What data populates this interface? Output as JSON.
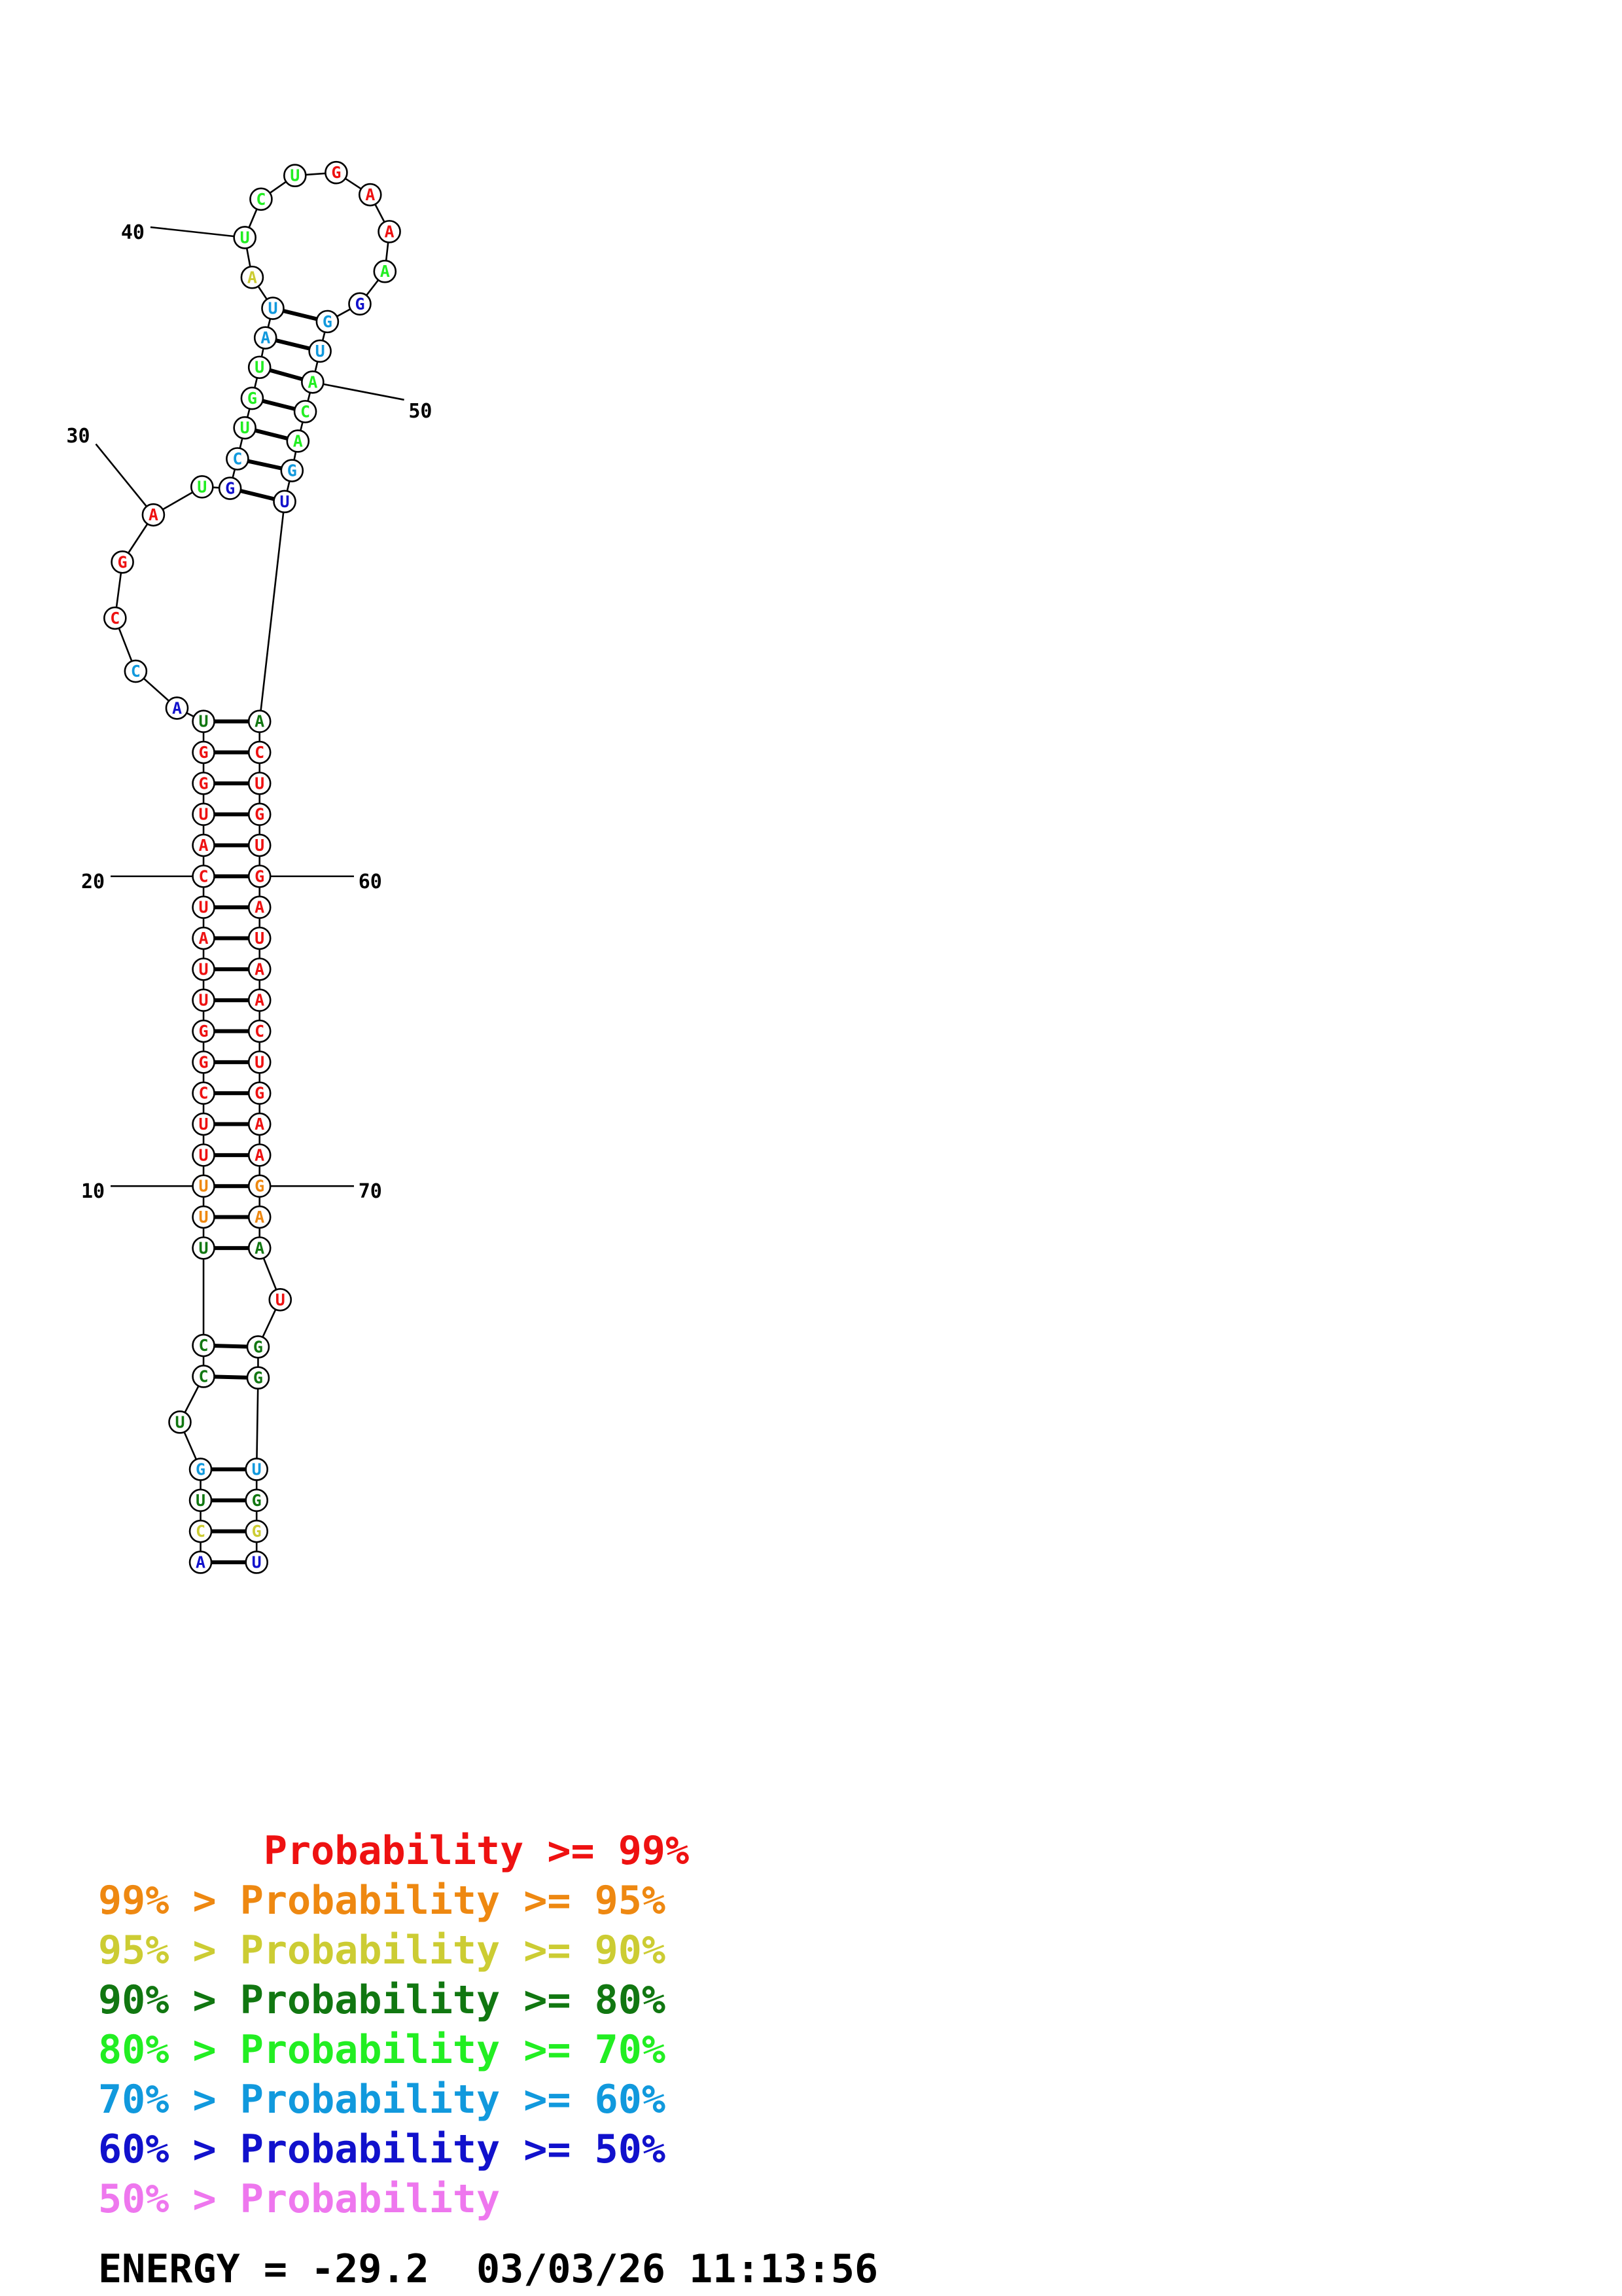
{
  "colors": {
    "p99": "#ee1111",
    "p95": "#ee8811",
    "p90": "#cccc33",
    "p80": "#117711",
    "p70": "#22ee22",
    "p60": "#1199dd",
    "p50": "#1111cc",
    "plow": "#ee77ee"
  },
  "structure": {
    "bases": [
      {
        "n": 1,
        "b": "A",
        "c": "p50"
      },
      {
        "n": 2,
        "b": "C",
        "c": "p90"
      },
      {
        "n": 3,
        "b": "U",
        "c": "p80"
      },
      {
        "n": 4,
        "b": "G",
        "c": "p60"
      },
      {
        "n": 5,
        "b": "U",
        "c": "p80"
      },
      {
        "n": 6,
        "b": "C",
        "c": "p80"
      },
      {
        "n": 7,
        "b": "C",
        "c": "p80"
      },
      {
        "n": 8,
        "b": "U",
        "c": "p80"
      },
      {
        "n": 9,
        "b": "U",
        "c": "p95"
      },
      {
        "n": 10,
        "b": "U",
        "c": "p95"
      },
      {
        "n": 11,
        "b": "U",
        "c": "p99"
      },
      {
        "n": 12,
        "b": "U",
        "c": "p99"
      },
      {
        "n": 13,
        "b": "C",
        "c": "p99"
      },
      {
        "n": 14,
        "b": "G",
        "c": "p99"
      },
      {
        "n": 15,
        "b": "G",
        "c": "p99"
      },
      {
        "n": 16,
        "b": "U",
        "c": "p99"
      },
      {
        "n": 17,
        "b": "U",
        "c": "p99"
      },
      {
        "n": 18,
        "b": "A",
        "c": "p99"
      },
      {
        "n": 19,
        "b": "U",
        "c": "p99"
      },
      {
        "n": 20,
        "b": "C",
        "c": "p99"
      },
      {
        "n": 21,
        "b": "A",
        "c": "p99"
      },
      {
        "n": 22,
        "b": "U",
        "c": "p99"
      },
      {
        "n": 23,
        "b": "G",
        "c": "p99"
      },
      {
        "n": 24,
        "b": "G",
        "c": "p99"
      },
      {
        "n": 25,
        "b": "U",
        "c": "p80"
      },
      {
        "n": 26,
        "b": "A",
        "c": "p50"
      },
      {
        "n": 27,
        "b": "C",
        "c": "p60"
      },
      {
        "n": 28,
        "b": "C",
        "c": "p99"
      },
      {
        "n": 29,
        "b": "G",
        "c": "p99"
      },
      {
        "n": 30,
        "b": "A",
        "c": "p99"
      },
      {
        "n": 31,
        "b": "U",
        "c": "p70"
      },
      {
        "n": 32,
        "b": "G",
        "c": "p50"
      },
      {
        "n": 33,
        "b": "C",
        "c": "p60"
      },
      {
        "n": 34,
        "b": "U",
        "c": "p70"
      },
      {
        "n": 35,
        "b": "G",
        "c": "p70"
      },
      {
        "n": 36,
        "b": "U",
        "c": "p70"
      },
      {
        "n": 37,
        "b": "A",
        "c": "p60"
      },
      {
        "n": 38,
        "b": "U",
        "c": "p60"
      },
      {
        "n": 39,
        "b": "A",
        "c": "p90"
      },
      {
        "n": 40,
        "b": "U",
        "c": "p70"
      },
      {
        "n": 41,
        "b": "C",
        "c": "p70"
      },
      {
        "n": 42,
        "b": "U",
        "c": "p70"
      },
      {
        "n": 43,
        "b": "G",
        "c": "p99"
      },
      {
        "n": 44,
        "b": "A",
        "c": "p99"
      },
      {
        "n": 45,
        "b": "A",
        "c": "p99"
      },
      {
        "n": 46,
        "b": "A",
        "c": "p70"
      },
      {
        "n": 47,
        "b": "G",
        "c": "p50"
      },
      {
        "n": 48,
        "b": "G",
        "c": "p60"
      },
      {
        "n": 49,
        "b": "U",
        "c": "p60"
      },
      {
        "n": 50,
        "b": "A",
        "c": "p70"
      },
      {
        "n": 51,
        "b": "C",
        "c": "p70"
      },
      {
        "n": 52,
        "b": "A",
        "c": "p70"
      },
      {
        "n": 53,
        "b": "G",
        "c": "p60"
      },
      {
        "n": 54,
        "b": "U",
        "c": "p50"
      },
      {
        "n": 55,
        "b": "A",
        "c": "p80"
      },
      {
        "n": 56,
        "b": "C",
        "c": "p99"
      },
      {
        "n": 57,
        "b": "U",
        "c": "p99"
      },
      {
        "n": 58,
        "b": "G",
        "c": "p99"
      },
      {
        "n": 59,
        "b": "U",
        "c": "p99"
      },
      {
        "n": 60,
        "b": "G",
        "c": "p99"
      },
      {
        "n": 61,
        "b": "A",
        "c": "p99"
      },
      {
        "n": 62,
        "b": "U",
        "c": "p99"
      },
      {
        "n": 63,
        "b": "A",
        "c": "p99"
      },
      {
        "n": 64,
        "b": "A",
        "c": "p99"
      },
      {
        "n": 65,
        "b": "C",
        "c": "p99"
      },
      {
        "n": 66,
        "b": "U",
        "c": "p99"
      },
      {
        "n": 67,
        "b": "G",
        "c": "p99"
      },
      {
        "n": 68,
        "b": "A",
        "c": "p99"
      },
      {
        "n": 69,
        "b": "A",
        "c": "p99"
      },
      {
        "n": 70,
        "b": "G",
        "c": "p95"
      },
      {
        "n": 71,
        "b": "A",
        "c": "p95"
      },
      {
        "n": 72,
        "b": "A",
        "c": "p80"
      },
      {
        "n": 73,
        "b": "U",
        "c": "p99"
      },
      {
        "n": 74,
        "b": "G",
        "c": "p80"
      },
      {
        "n": 75,
        "b": "G",
        "c": "p80"
      },
      {
        "n": 76,
        "b": "U",
        "c": "p60"
      },
      {
        "n": 77,
        "b": "G",
        "c": "p80"
      },
      {
        "n": 78,
        "b": "G",
        "c": "p90"
      },
      {
        "n": 79,
        "b": "U",
        "c": "p50"
      }
    ],
    "pairs": [
      [
        1,
        79
      ],
      [
        2,
        78
      ],
      [
        3,
        77
      ],
      [
        4,
        76
      ],
      [
        6,
        75
      ],
      [
        7,
        74
      ],
      [
        8,
        72
      ],
      [
        9,
        71
      ],
      [
        10,
        70
      ],
      [
        11,
        69
      ],
      [
        12,
        68
      ],
      [
        13,
        67
      ],
      [
        14,
        66
      ],
      [
        15,
        65
      ],
      [
        16,
        64
      ],
      [
        17,
        63
      ],
      [
        18,
        62
      ],
      [
        19,
        61
      ],
      [
        20,
        60
      ],
      [
        21,
        59
      ],
      [
        22,
        58
      ],
      [
        23,
        57
      ],
      [
        24,
        56
      ],
      [
        25,
        55
      ],
      [
        32,
        54
      ],
      [
        33,
        53
      ],
      [
        34,
        52
      ],
      [
        35,
        51
      ],
      [
        36,
        50
      ],
      [
        37,
        49
      ],
      [
        38,
        48
      ]
    ],
    "position_labels": [
      {
        "n": 10,
        "text": "10"
      },
      {
        "n": 20,
        "text": "20"
      },
      {
        "n": 30,
        "text": "30"
      },
      {
        "n": 40,
        "text": "40"
      },
      {
        "n": 50,
        "text": "50"
      },
      {
        "n": 60,
        "text": "60"
      },
      {
        "n": 70,
        "text": "70"
      }
    ]
  },
  "legend": [
    {
      "prefix": "       ",
      "label": "Probability >= 99%",
      "c": "p99"
    },
    {
      "prefix": "99% > ",
      "label": "Probability >= 95%",
      "c": "p95"
    },
    {
      "prefix": "95% > ",
      "label": "Probability >= 90%",
      "c": "p90"
    },
    {
      "prefix": "90% > ",
      "label": "Probability >= 80%",
      "c": "p80"
    },
    {
      "prefix": "80% > ",
      "label": "Probability >= 70%",
      "c": "p70"
    },
    {
      "prefix": "70% > ",
      "label": "Probability >= 60%",
      "c": "p60"
    },
    {
      "prefix": "60% > ",
      "label": "Probability >= 50%",
      "c": "p50"
    },
    {
      "prefix": "50% > ",
      "label": "Probability",
      "c": "plow"
    }
  ],
  "energy": {
    "text": "ENERGY = -29.2  03/03/26 11:13:56"
  }
}
